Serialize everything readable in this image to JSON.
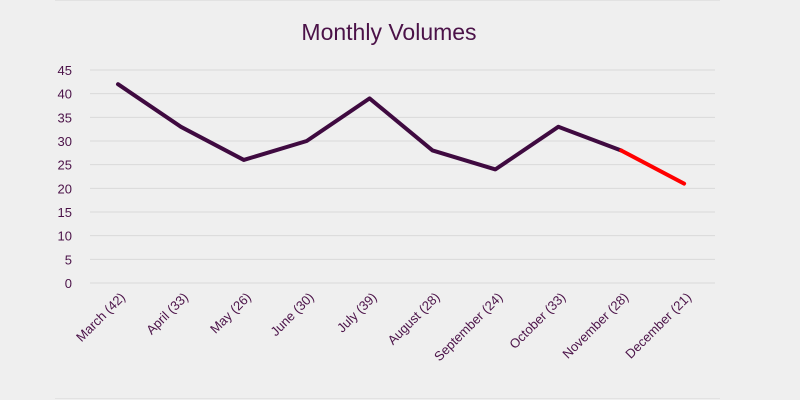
{
  "chart_data": {
    "type": "line",
    "title": "Monthly Volumes",
    "categories": [
      "March (42)",
      "April (33)",
      "May (26)",
      "June (30)",
      "July (39)",
      "August (28)",
      "September (24)",
      "October (33)",
      "November (28)",
      "December (21)"
    ],
    "series": [
      {
        "values": [
          42,
          33,
          26,
          30,
          39,
          28,
          24,
          33,
          28,
          21
        ]
      }
    ],
    "highlight_segment": {
      "from": "November (28)",
      "to": "December (21)",
      "color": "#ff0000"
    },
    "ylim": [
      0,
      45
    ],
    "yticks": [
      0,
      5,
      10,
      15,
      20,
      25,
      30,
      35,
      40,
      45
    ],
    "grid": true,
    "colors": {
      "line": "#3f0a40",
      "text": "#4b1248",
      "grid": "#d9d9d9",
      "background": "#efefef"
    }
  }
}
